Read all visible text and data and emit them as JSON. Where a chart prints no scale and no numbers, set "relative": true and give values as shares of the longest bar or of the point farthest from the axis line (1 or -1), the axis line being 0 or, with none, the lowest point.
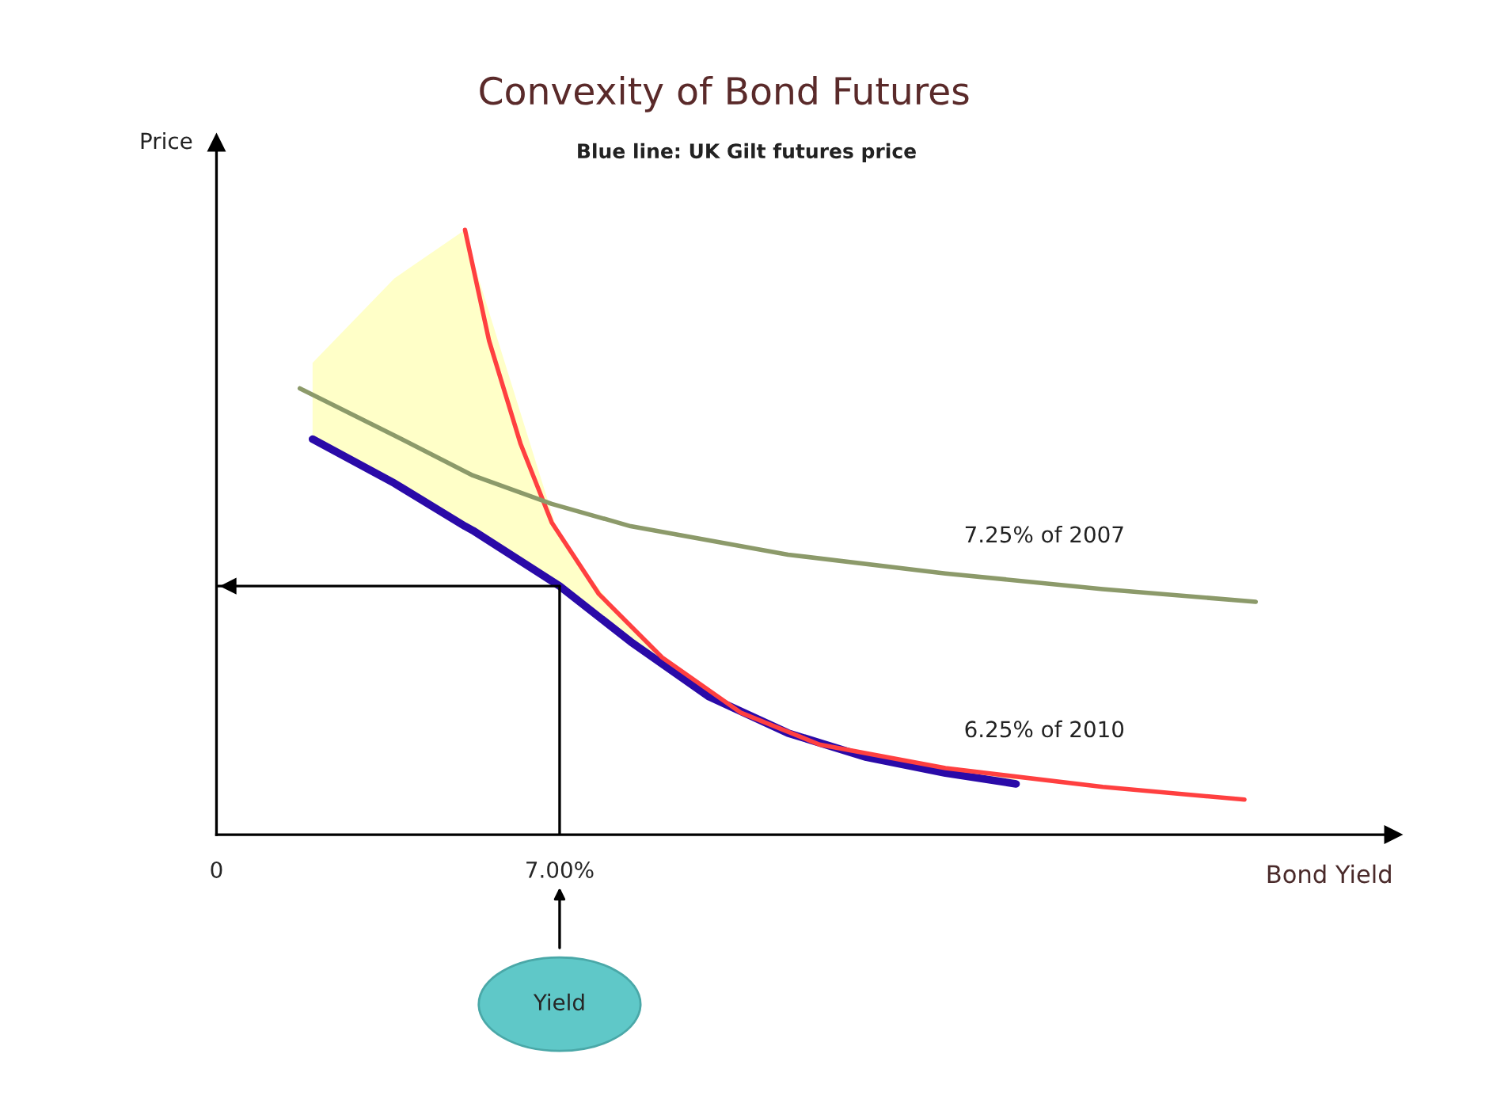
{
  "chart_data": {
    "type": "line",
    "title": "Convexity of Bond Futures",
    "subtitle": "Blue line: UK Gilt futures price",
    "xlabel": "Bond Yield",
    "ylabel": "Price",
    "relative": true,
    "xlim": [
      0,
      24
    ],
    "xticks": [
      0,
      {
        "value": 7,
        "label": "7.00%"
      }
    ],
    "series": [
      {
        "color": "#2a0aa8",
        "x": [
          1.96,
          3.63,
          5.07,
          5.23,
          7.0,
          8.45,
          10.05,
          11.66,
          13.26,
          14.87,
          16.31
        ],
        "values": [
          0.654,
          0.581,
          0.51,
          0.503,
          0.411,
          0.319,
          0.228,
          0.168,
          0.128,
          0.102,
          0.084
        ],
        "lower": [
          0.654,
          0.581,
          0.51,
          0.503,
          0.411,
          0.319,
          0.228,
          0.168,
          0.128,
          0.102,
          0.084
        ],
        "upper": [
          0.78,
          0.92,
          1.0,
          0.95,
          0.49,
          0.34,
          0.23,
          0.17,
          0.135,
          0.11,
          0.095
        ]
      },
      {
        "name": "6.25% of 2010",
        "color": "#ff4040",
        "x": [
          5.07,
          5.56,
          6.2,
          6.84,
          7.8,
          9.09,
          10.69,
          12.3,
          14.87,
          18.08,
          20.97
        ],
        "values": [
          1.0,
          0.817,
          0.647,
          0.516,
          0.398,
          0.293,
          0.202,
          0.149,
          0.11,
          0.079,
          0.058
        ]
      },
      {
        "name": "7.25% of 2007",
        "color": "#8c9a6a",
        "x": [
          1.7,
          3.63,
          5.23,
          6.84,
          8.45,
          11.66,
          14.87,
          18.08,
          21.2
        ],
        "values": [
          0.738,
          0.66,
          0.594,
          0.547,
          0.51,
          0.463,
          0.432,
          0.406,
          0.385
        ]
      }
    ],
    "ref_lines": [
      {
        "axis": "x",
        "value": 7,
        "color": "#000000"
      },
      {
        "axis": "y",
        "value": 0.411,
        "color": "#000000"
      }
    ],
    "annotations": [
      "Yield"
    ],
    "grid": false,
    "legend": false
  }
}
